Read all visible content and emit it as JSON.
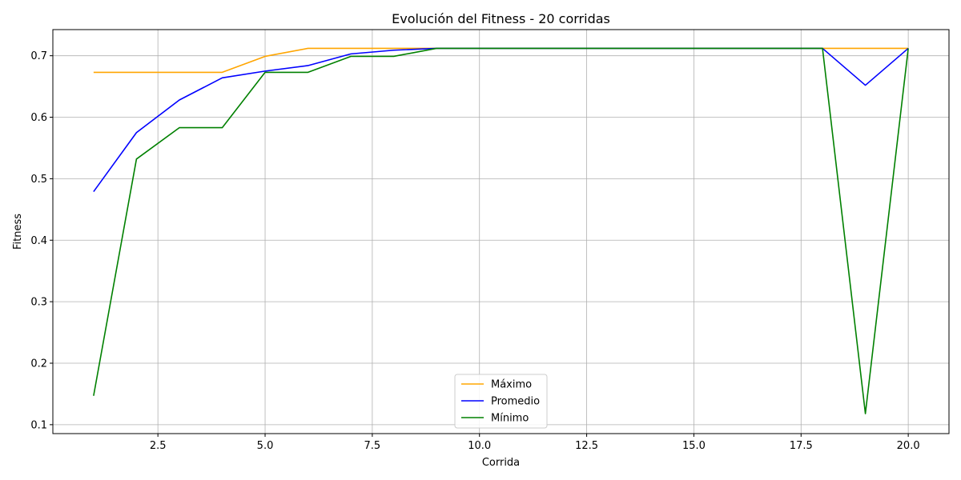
{
  "chart_data": {
    "type": "line",
    "title": "Evolución del Fitness - 20 corridas",
    "xlabel": "Corrida",
    "ylabel": "Fitness",
    "xlim": [
      0.05,
      20.95
    ],
    "ylim": [
      0.0855,
      0.7425
    ],
    "xticks": [
      2.5,
      5.0,
      7.5,
      10.0,
      12.5,
      15.0,
      17.5,
      20.0
    ],
    "yticks": [
      0.1,
      0.2,
      0.3,
      0.4,
      0.5,
      0.6,
      0.7
    ],
    "grid": true,
    "legend_position": "bottom-center",
    "x": [
      1,
      2,
      3,
      4,
      5,
      6,
      7,
      8,
      9,
      10,
      11,
      12,
      13,
      14,
      15,
      16,
      17,
      18,
      19,
      20
    ],
    "series": [
      {
        "name": "Máximo",
        "color": "#ffa500",
        "values": [
          0.673,
          0.673,
          0.673,
          0.673,
          0.699,
          0.712,
          0.712,
          0.712,
          0.712,
          0.712,
          0.712,
          0.712,
          0.712,
          0.712,
          0.712,
          0.712,
          0.712,
          0.712,
          0.712,
          0.712
        ]
      },
      {
        "name": "Promedio",
        "color": "#0000ff",
        "values": [
          0.479,
          0.575,
          0.628,
          0.664,
          0.675,
          0.684,
          0.703,
          0.709,
          0.712,
          0.712,
          0.712,
          0.712,
          0.712,
          0.712,
          0.712,
          0.712,
          0.712,
          0.712,
          0.652,
          0.712
        ]
      },
      {
        "name": "Mínimo",
        "color": "#008000",
        "values": [
          0.147,
          0.532,
          0.583,
          0.583,
          0.673,
          0.673,
          0.699,
          0.699,
          0.712,
          0.712,
          0.712,
          0.712,
          0.712,
          0.712,
          0.712,
          0.712,
          0.712,
          0.712,
          0.118,
          0.712
        ]
      }
    ]
  }
}
